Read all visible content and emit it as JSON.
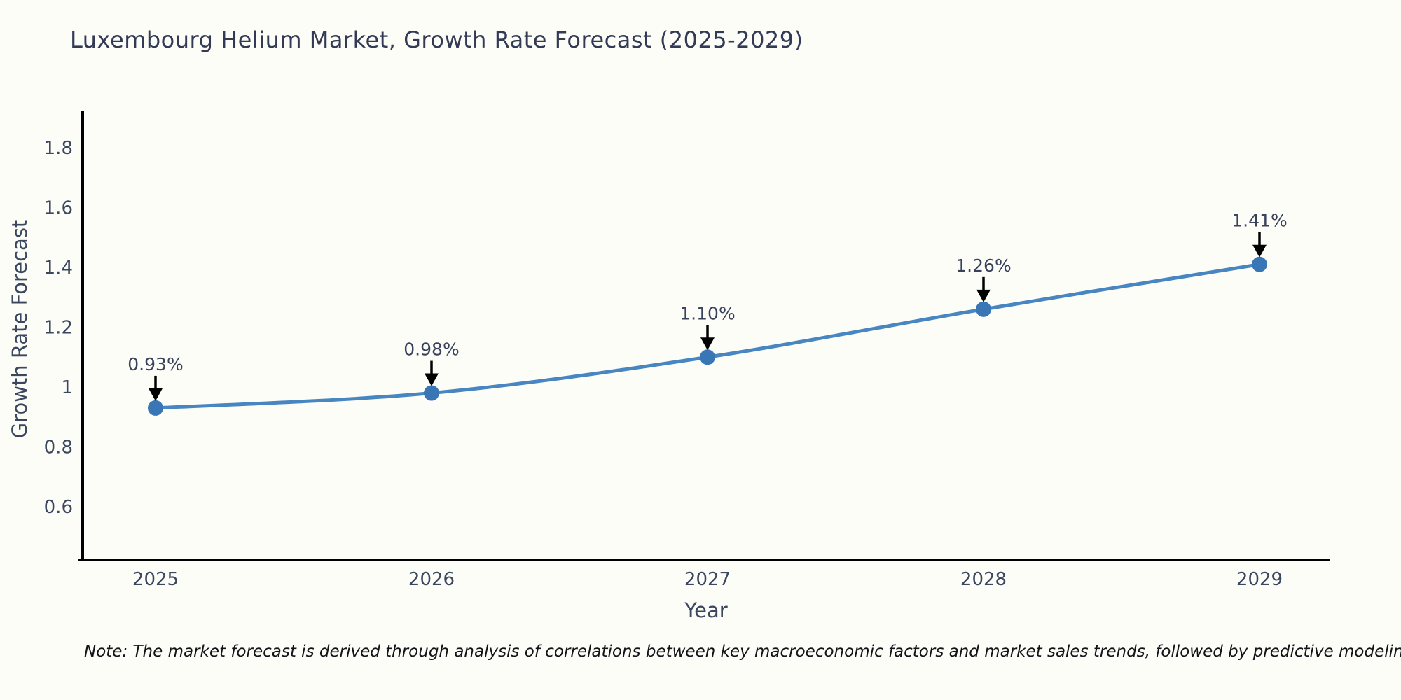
{
  "title": "Luxembourg Helium Market, Growth Rate Forecast (2025-2029)",
  "note": "Note: The market forecast is derived through analysis of correlations between key macroeconomic factors and market sales trends, followed by predictive modeling to project future sales",
  "chart_data": {
    "type": "line",
    "title": "Luxembourg Helium Market, Growth Rate Forecast (2025-2029)",
    "xlabel": "Year",
    "ylabel": "Growth Rate Forecast",
    "categories": [
      2025,
      2026,
      2027,
      2028,
      2029
    ],
    "values": [
      0.93,
      0.98,
      1.1,
      1.26,
      1.41
    ],
    "point_labels": [
      "0.93%",
      "0.98%",
      "1.10%",
      "1.26%",
      "1.41%"
    ],
    "ytick_labels": [
      "1.8",
      "1.6",
      "1.4",
      "1.2",
      "1",
      "0.8",
      "0.6"
    ],
    "ytick_values": [
      1.8,
      1.6,
      1.4,
      1.2,
      1.0,
      0.8,
      0.6
    ],
    "ylim": [
      0.42,
      1.92
    ],
    "grid": false,
    "legend": false,
    "annotation_style": "black-down-arrows",
    "colors": {
      "line": "#4886c2",
      "marker": "#3876b6",
      "axis": "#000000",
      "tick_text": "#3b465f",
      "annotation_text": "#39425c",
      "arrow": "#000000"
    }
  }
}
